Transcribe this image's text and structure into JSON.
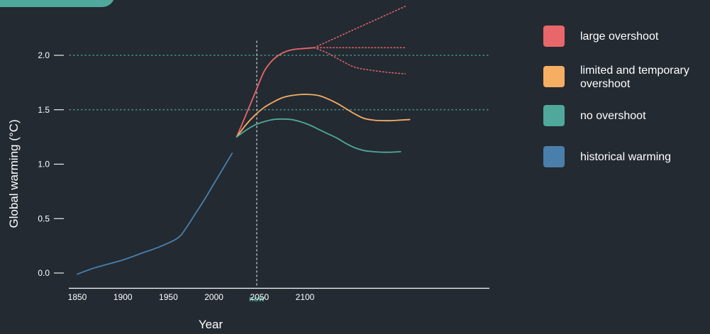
{
  "chart_data": {
    "type": "line",
    "xlabel": "Year",
    "ylabel": "Global warming (°C)",
    "x_ticks": [
      "1850",
      "1900",
      "1950",
      "2000",
      "now",
      "2050",
      "2100"
    ],
    "y_ticks": [
      "0.0",
      "0.5",
      "1.0",
      "1.5",
      "2.0"
    ],
    "ylim": [
      0,
      2.0
    ],
    "reference_lines": [
      1.5,
      2.0
    ],
    "now_marker": "now",
    "series": [
      {
        "name": "large overshoot",
        "color": "#e8676a",
        "x": [
          2025,
          2035,
          2045,
          2055,
          2065,
          2075,
          2085,
          2095,
          2110
        ],
        "y": [
          1.25,
          1.45,
          1.65,
          1.85,
          1.96,
          2.02,
          2.05,
          2.06,
          2.07
        ],
        "branches": [
          {
            "x": [
              2110,
              2210
            ],
            "y": [
              2.07,
              2.45
            ]
          },
          {
            "x": [
              2110,
              2210
            ],
            "y": [
              2.07,
              2.07
            ]
          },
          {
            "x": [
              2110,
              2125,
              2140,
              2155,
              2175,
              2195,
              2210
            ],
            "y": [
              2.07,
              2.02,
              1.95,
              1.89,
              1.86,
              1.84,
              1.83
            ]
          }
        ]
      },
      {
        "name": "limited and temporary overshoot",
        "color": "#f5ae62",
        "x": [
          2025,
          2035,
          2045,
          2055,
          2065,
          2075,
          2085,
          2095,
          2105,
          2115,
          2125,
          2135,
          2145,
          2155,
          2165,
          2175,
          2185,
          2195,
          2205,
          2215
        ],
        "y": [
          1.25,
          1.36,
          1.45,
          1.52,
          1.57,
          1.61,
          1.63,
          1.64,
          1.64,
          1.63,
          1.6,
          1.56,
          1.51,
          1.46,
          1.42,
          1.405,
          1.4,
          1.4,
          1.405,
          1.41
        ]
      },
      {
        "name": "no overshoot",
        "color": "#4fa89b",
        "x": [
          2025,
          2035,
          2045,
          2055,
          2065,
          2075,
          2085,
          2095,
          2105,
          2115,
          2125,
          2135,
          2145,
          2155,
          2165,
          2175,
          2185,
          2195,
          2205
        ],
        "y": [
          1.25,
          1.31,
          1.36,
          1.39,
          1.41,
          1.415,
          1.41,
          1.39,
          1.36,
          1.32,
          1.28,
          1.24,
          1.19,
          1.15,
          1.125,
          1.115,
          1.11,
          1.11,
          1.115
        ]
      },
      {
        "name": "historical warming",
        "color": "#4a7fab",
        "x": [
          1850,
          1870,
          1900,
          1920,
          1940,
          1960,
          1970,
          1980,
          1990,
          2000,
          2010,
          2020
        ],
        "y": [
          -0.01,
          0.05,
          0.12,
          0.18,
          0.24,
          0.32,
          0.42,
          0.55,
          0.68,
          0.82,
          0.96,
          1.1
        ]
      }
    ],
    "legend_position": "right"
  },
  "colors": {
    "background": "#232a32",
    "axis": "#ffffff",
    "reference_line": "#4fa89b",
    "now_line": "#c9ced3",
    "now_label": "#4fa89b",
    "corner_tab": "#4fa89b"
  }
}
